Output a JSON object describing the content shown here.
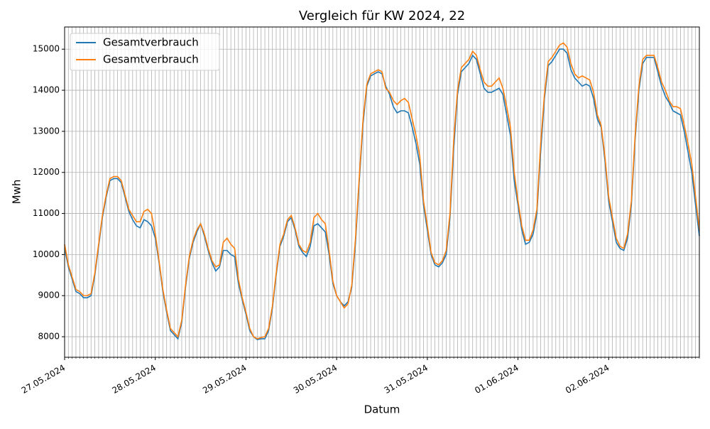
{
  "chart_data": {
    "type": "line",
    "title": "Vergleich für KW 2024, 22",
    "xlabel": "Datum",
    "ylabel": "Mwh",
    "x": [
      0,
      1,
      2,
      3,
      4,
      5,
      6,
      7,
      8,
      9,
      10,
      11,
      12,
      13,
      14,
      15,
      16,
      17,
      18,
      19,
      20,
      21,
      22,
      23,
      24,
      25,
      26,
      27,
      28,
      29,
      30,
      31,
      32,
      33,
      34,
      35,
      36,
      37,
      38,
      39,
      40,
      41,
      42,
      43,
      44,
      45,
      46,
      47,
      48,
      49,
      50,
      51,
      52,
      53,
      54,
      55,
      56,
      57,
      58,
      59,
      60,
      61,
      62,
      63,
      64,
      65,
      66,
      67,
      68,
      69,
      70,
      71,
      72,
      73,
      74,
      75,
      76,
      77,
      78,
      79,
      80,
      81,
      82,
      83,
      84,
      85,
      86,
      87,
      88,
      89,
      90,
      91,
      92,
      93,
      94,
      95,
      96,
      97,
      98,
      99,
      100,
      101,
      102,
      103,
      104,
      105,
      106,
      107,
      108,
      109,
      110,
      111,
      112,
      113,
      114,
      115,
      116,
      117,
      118,
      119,
      120,
      121,
      122,
      123,
      124,
      125,
      126,
      127,
      128,
      129,
      130,
      131,
      132,
      133,
      134,
      135,
      136,
      137,
      138,
      139,
      140,
      141,
      142,
      143,
      144,
      145,
      146,
      147,
      148,
      149,
      150,
      151,
      152,
      153,
      154,
      155,
      156,
      157,
      158,
      159,
      160,
      161,
      162,
      163,
      164,
      165,
      166,
      167,
      168
    ],
    "series": [
      {
        "name": "Gesamtverbrauch",
        "color": "#1f77b4",
        "values": [
          10150,
          9700,
          9400,
          9100,
          9050,
          8950,
          8950,
          9000,
          9500,
          10200,
          10900,
          11400,
          11800,
          11850,
          11850,
          11750,
          11400,
          11050,
          10850,
          10700,
          10650,
          10850,
          10800,
          10700,
          10400,
          9800,
          9100,
          8600,
          8150,
          8050,
          7950,
          8350,
          9200,
          9900,
          10300,
          10550,
          10750,
          10450,
          10100,
          9800,
          9600,
          9700,
          10100,
          10100,
          10000,
          9950,
          9300,
          8900,
          8550,
          8150,
          8000,
          7930,
          7950,
          7950,
          8150,
          8700,
          9500,
          10200,
          10450,
          10800,
          10900,
          10600,
          10200,
          10050,
          9950,
          10200,
          10700,
          10750,
          10650,
          10550,
          10000,
          9300,
          9000,
          8850,
          8750,
          8850,
          9200,
          10300,
          11800,
          13200,
          14100,
          14350,
          14400,
          14450,
          14400,
          14100,
          13900,
          13600,
          13450,
          13500,
          13500,
          13450,
          13100,
          12700,
          12200,
          11200,
          10600,
          10000,
          9750,
          9700,
          9800,
          10000,
          10900,
          12600,
          13900,
          14450,
          14550,
          14650,
          14850,
          14750,
          14400,
          14050,
          13950,
          13950,
          14000,
          14050,
          13900,
          13400,
          12900,
          11800,
          11200,
          10600,
          10250,
          10300,
          10500,
          11000,
          12500,
          13800,
          14600,
          14700,
          14850,
          15000,
          15000,
          14900,
          14500,
          14300,
          14200,
          14100,
          14150,
          14100,
          13800,
          13300,
          13100,
          12300,
          11300,
          10800,
          10300,
          10150,
          10100,
          10400,
          11200,
          12800,
          14000,
          14650,
          14800,
          14800,
          14800,
          14450,
          14100,
          13850,
          13700,
          13500,
          13450,
          13400,
          13000,
          12500,
          12000,
          11200,
          10450
        ]
      },
      {
        "name": "Gesamtverbrauch",
        "color": "#ff7f0e",
        "values": [
          10250,
          9750,
          9450,
          9150,
          9100,
          9000,
          9000,
          9050,
          9550,
          10250,
          10950,
          11450,
          11850,
          11900,
          11900,
          11800,
          11450,
          11100,
          10950,
          10800,
          10800,
          11050,
          11100,
          11000,
          10500,
          9850,
          9150,
          8650,
          8200,
          8100,
          8000,
          8400,
          9250,
          9950,
          10350,
          10600,
          10750,
          10500,
          10150,
          9850,
          9700,
          9750,
          10300,
          10400,
          10250,
          10150,
          9400,
          8950,
          8600,
          8200,
          8000,
          7950,
          7980,
          8000,
          8200,
          8750,
          9550,
          10250,
          10500,
          10850,
          10950,
          10650,
          10250,
          10100,
          10050,
          10300,
          10900,
          11000,
          10850,
          10750,
          10100,
          9350,
          9000,
          8850,
          8700,
          8800,
          9250,
          10400,
          11900,
          13300,
          14150,
          14400,
          14450,
          14500,
          14450,
          14050,
          13950,
          13750,
          13650,
          13750,
          13800,
          13700,
          13300,
          12900,
          12400,
          11300,
          10700,
          10050,
          9800,
          9750,
          9850,
          10100,
          11000,
          12800,
          14000,
          14550,
          14650,
          14750,
          14950,
          14850,
          14500,
          14200,
          14100,
          14100,
          14200,
          14300,
          14050,
          13600,
          13100,
          12000,
          11300,
          10700,
          10350,
          10350,
          10600,
          11100,
          12700,
          13900,
          14700,
          14800,
          14950,
          15100,
          15150,
          15050,
          14650,
          14400,
          14300,
          14350,
          14300,
          14250,
          13950,
          13400,
          13150,
          12400,
          11400,
          10900,
          10400,
          10200,
          10150,
          10500,
          11300,
          12900,
          14100,
          14750,
          14850,
          14850,
          14850,
          14550,
          14200,
          14000,
          13750,
          13600,
          13600,
          13550,
          13150,
          12700,
          12200,
          11400,
          10600
        ]
      }
    ],
    "xlim": [
      0,
      168
    ],
    "xticks": [
      {
        "value": 0,
        "label": "27.05.2024"
      },
      {
        "value": 24,
        "label": "28.05.2024"
      },
      {
        "value": 48,
        "label": "29.05.2024"
      },
      {
        "value": 72,
        "label": "30.05.2024"
      },
      {
        "value": 96,
        "label": "31.05.2024"
      },
      {
        "value": 120,
        "label": "01.06.2024"
      },
      {
        "value": 144,
        "label": "02.06.2024"
      }
    ],
    "ylim": [
      7500,
      15540
    ],
    "yticks": [
      8000,
      9000,
      10000,
      11000,
      12000,
      13000,
      14000,
      15000
    ],
    "grid": true,
    "minor_grid": true,
    "legend": "upper left"
  }
}
